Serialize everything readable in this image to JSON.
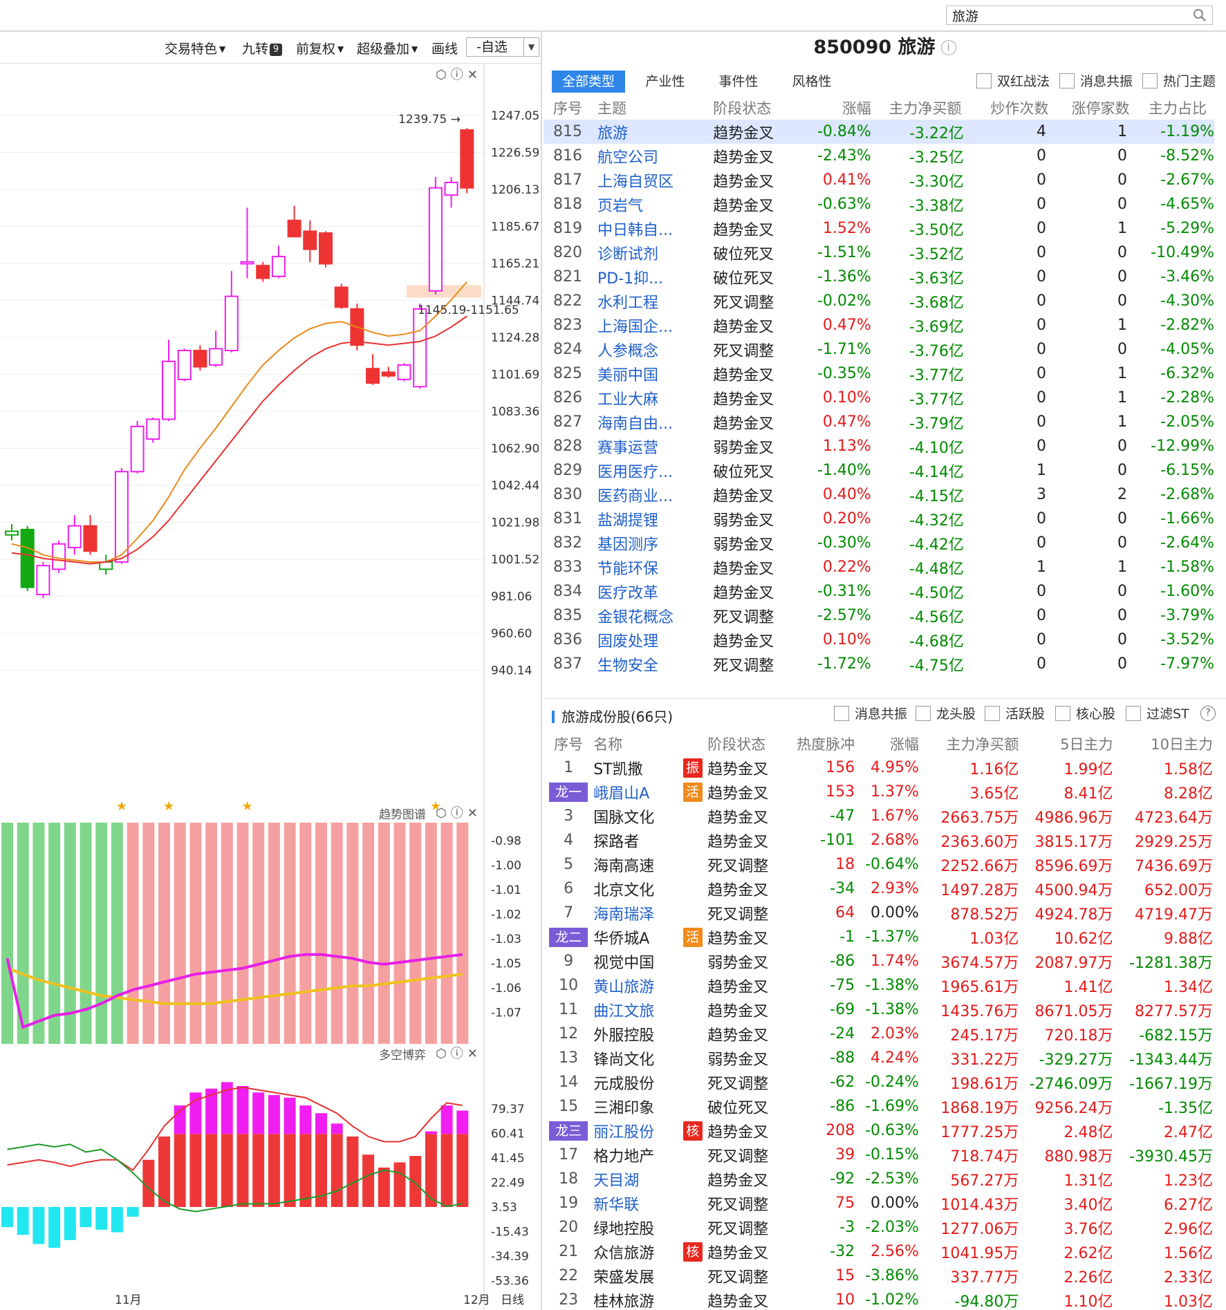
{
  "search": {
    "value": "旅游"
  },
  "toolbar": {
    "trade_feature": "交易特色",
    "nine_turn": "九转",
    "nine_badge": "9",
    "forward_adjust": "前复权",
    "super_overlay": "超级叠加",
    "draw_line": "画线",
    "watchlist": "-自选"
  },
  "kline": {
    "y_ticks": [
      "1247.05",
      "1226.59",
      "1206.13",
      "1185.67",
      "1165.21",
      "1144.74",
      "1124.28",
      "1101.69",
      "1083.36",
      "1062.90",
      "1042.44",
      "1021.98",
      "1001.52",
      "981.06",
      "960.60",
      "940.14"
    ],
    "high_label": "1239.75",
    "zone_label": "1145.19-1151.65",
    "x_labels": [
      "11月",
      "12月"
    ],
    "period": "日线",
    "candles": [
      {
        "o": 1015,
        "h": 1021,
        "l": 1012,
        "c": 1017
      },
      {
        "o": 1018,
        "h": 1020,
        "l": 984,
        "c": 986
      },
      {
        "o": 982,
        "h": 1000,
        "l": 980,
        "c": 998
      },
      {
        "o": 996,
        "h": 1012,
        "l": 994,
        "c": 1010
      },
      {
        "o": 1008,
        "h": 1026,
        "l": 1004,
        "c": 1020
      },
      {
        "o": 1020,
        "h": 1026,
        "l": 1004,
        "c": 1006
      },
      {
        "o": 996,
        "h": 1004,
        "l": 993,
        "c": 1000
      },
      {
        "o": 1000,
        "h": 1052,
        "l": 999,
        "c": 1050
      },
      {
        "o": 1050,
        "h": 1078,
        "l": 1049,
        "c": 1075
      },
      {
        "o": 1068,
        "h": 1080,
        "l": 1066,
        "c": 1079
      },
      {
        "o": 1079,
        "h": 1123,
        "l": 1078,
        "c": 1111
      },
      {
        "o": 1101,
        "h": 1118,
        "l": 1100,
        "c": 1117
      },
      {
        "o": 1117,
        "h": 1120,
        "l": 1106,
        "c": 1108
      },
      {
        "o": 1109,
        "h": 1128,
        "l": 1108,
        "c": 1118
      },
      {
        "o": 1117,
        "h": 1161,
        "l": 1116,
        "c": 1147
      },
      {
        "o": 1165,
        "h": 1196,
        "l": 1157,
        "c": 1166
      },
      {
        "o": 1164,
        "h": 1166,
        "l": 1155,
        "c": 1157
      },
      {
        "o": 1158,
        "h": 1175,
        "l": 1157,
        "c": 1169
      },
      {
        "o": 1189,
        "h": 1197,
        "l": 1180,
        "c": 1180
      },
      {
        "o": 1183,
        "h": 1189,
        "l": 1166,
        "c": 1173
      },
      {
        "o": 1182,
        "h": 1183,
        "l": 1163,
        "c": 1165
      },
      {
        "o": 1152,
        "h": 1154,
        "l": 1140,
        "c": 1141
      },
      {
        "o": 1140,
        "h": 1143,
        "l": 1117,
        "c": 1120
      },
      {
        "o": 1107,
        "h": 1115,
        "l": 1098,
        "c": 1099
      },
      {
        "o": 1105,
        "h": 1108,
        "l": 1102,
        "c": 1103
      },
      {
        "o": 1101,
        "h": 1110,
        "l": 1100,
        "c": 1109
      },
      {
        "o": 1097,
        "h": 1143,
        "l": 1096,
        "c": 1140
      },
      {
        "o": 1150,
        "h": 1213,
        "l": 1148,
        "c": 1207
      },
      {
        "o": 1203,
        "h": 1213,
        "l": 1196,
        "c": 1210
      },
      {
        "o": 1239,
        "h": 1240,
        "l": 1204,
        "c": 1207
      }
    ],
    "ma_short": [
      1010,
      1008,
      1004,
      1002,
      1001,
      1000,
      1000,
      1004,
      1013,
      1023,
      1036,
      1051,
      1063,
      1074,
      1086,
      1098,
      1109,
      1117,
      1124,
      1129,
      1132,
      1133,
      1130,
      1127,
      1125,
      1126,
      1128,
      1136,
      1145,
      1155
    ],
    "ma_long": [
      1005,
      1004,
      1002,
      1001,
      1000,
      999,
      1000,
      1002,
      1007,
      1014,
      1023,
      1034,
      1045,
      1056,
      1067,
      1078,
      1089,
      1098,
      1106,
      1113,
      1118,
      1121,
      1122,
      1121,
      1120,
      1121,
      1122,
      1125,
      1130,
      1136
    ],
    "stars": [
      7,
      10,
      15,
      27
    ]
  },
  "trend_panel": {
    "title": "趋势图谱",
    "y_ticks": [
      "-0.98",
      "-1.00",
      "-1.01",
      "-1.02",
      "-1.03",
      "-1.05",
      "-1.06",
      "-1.07"
    ],
    "bar_colors": [
      "green",
      "green",
      "green",
      "green",
      "green",
      "green",
      "green",
      "green",
      "red",
      "red",
      "red",
      "red",
      "red",
      "red",
      "red",
      "red",
      "red",
      "red",
      "red",
      "red",
      "red",
      "red",
      "red",
      "red",
      "red",
      "red",
      "red",
      "red",
      "red",
      "red"
    ],
    "magenta_line": [
      -1.04,
      -1.075,
      -1.072,
      -1.069,
      -1.068,
      -1.066,
      -1.063,
      -1.059,
      -1.056,
      -1.054,
      -1.052,
      -1.05,
      -1.048,
      -1.047,
      -1.046,
      -1.045,
      -1.043,
      -1.041,
      -1.039,
      -1.038,
      -1.038,
      -1.039,
      -1.04,
      -1.042,
      -1.043,
      -1.042,
      -1.041,
      -1.04,
      -1.039,
      -1.038
    ],
    "yellow_line": [
      -1.045,
      -1.048,
      -1.051,
      -1.053,
      -1.055,
      -1.057,
      -1.059,
      -1.06,
      -1.061,
      -1.062,
      -1.063,
      -1.063,
      -1.063,
      -1.063,
      -1.062,
      -1.061,
      -1.06,
      -1.059,
      -1.058,
      -1.057,
      -1.056,
      -1.055,
      -1.054,
      -1.054,
      -1.053,
      -1.052,
      -1.051,
      -1.05,
      -1.049,
      -1.048
    ]
  },
  "ls_panel": {
    "title": "多空博弈",
    "y_ticks": [
      "79.37",
      "60.41",
      "41.45",
      "22.49",
      "3.53",
      "-15.43",
      "-34.39",
      "-53.36"
    ],
    "bars": [
      -12,
      -18,
      -25,
      -28,
      -22,
      -12,
      -14,
      -16,
      -4,
      40,
      58,
      82,
      92,
      95,
      100,
      97,
      92,
      90,
      88,
      82,
      76,
      68,
      58,
      44,
      34,
      38,
      43,
      62,
      82,
      78
    ],
    "base": [
      -6,
      -10,
      -14,
      -16,
      -14,
      -8,
      -10,
      -12,
      4,
      40,
      60,
      60,
      60,
      60,
      60,
      60,
      60,
      60,
      60,
      60,
      60,
      60,
      60,
      44,
      34,
      38,
      43,
      60,
      60,
      60
    ],
    "red_line": [
      36,
      38,
      40,
      38,
      35,
      38,
      40,
      40,
      32,
      48,
      66,
      78,
      86,
      90,
      94,
      96,
      94,
      92,
      90,
      88,
      82,
      76,
      66,
      58,
      54,
      54,
      58,
      72,
      84,
      82
    ],
    "green_line": [
      48,
      50,
      52,
      50,
      52,
      46,
      48,
      40,
      30,
      18,
      8,
      2,
      0,
      2,
      4,
      6,
      6,
      6,
      8,
      10,
      12,
      16,
      22,
      28,
      32,
      30,
      22,
      10,
      4,
      6
    ]
  },
  "theme": {
    "title": "850090 旅游",
    "tabs": [
      "全部类型",
      "产业性",
      "事件性",
      "风格性"
    ],
    "checks": [
      "双红战法",
      "消息共振",
      "热门主题"
    ],
    "headers": [
      "序号",
      "主题",
      "阶段状态",
      "涨幅",
      "主力净买额",
      "炒作次数",
      "涨停家数",
      "主力占比"
    ],
    "rows": [
      [
        "815",
        "旅游",
        "趋势金叉",
        "-0.84%",
        "-3.22亿",
        "4",
        "1",
        "-1.19%"
      ],
      [
        "816",
        "航空公司",
        "趋势金叉",
        "-2.43%",
        "-3.25亿",
        "0",
        "0",
        "-8.52%"
      ],
      [
        "817",
        "上海自贸区",
        "趋势金叉",
        "0.41%",
        "-3.30亿",
        "0",
        "0",
        "-2.67%"
      ],
      [
        "818",
        "页岩气",
        "趋势金叉",
        "-0.63%",
        "-3.38亿",
        "0",
        "0",
        "-4.65%"
      ],
      [
        "819",
        "中日韩自...",
        "趋势金叉",
        "1.52%",
        "-3.50亿",
        "0",
        "1",
        "-5.29%"
      ],
      [
        "820",
        "诊断试剂",
        "破位死叉",
        "-1.51%",
        "-3.52亿",
        "0",
        "0",
        "-10.49%"
      ],
      [
        "821",
        "PD-1抑...",
        "破位死叉",
        "-1.36%",
        "-3.63亿",
        "0",
        "0",
        "-3.46%"
      ],
      [
        "822",
        "水利工程",
        "死叉调整",
        "-0.02%",
        "-3.68亿",
        "0",
        "0",
        "-4.30%"
      ],
      [
        "823",
        "上海国企...",
        "趋势金叉",
        "0.47%",
        "-3.69亿",
        "0",
        "1",
        "-2.82%"
      ],
      [
        "824",
        "人参概念",
        "死叉调整",
        "-1.71%",
        "-3.76亿",
        "0",
        "0",
        "-4.05%"
      ],
      [
        "825",
        "美丽中国",
        "趋势金叉",
        "-0.35%",
        "-3.77亿",
        "0",
        "1",
        "-6.32%"
      ],
      [
        "826",
        "工业大麻",
        "趋势金叉",
        "0.10%",
        "-3.77亿",
        "0",
        "1",
        "-2.28%"
      ],
      [
        "827",
        "海南自由...",
        "趋势金叉",
        "0.47%",
        "-3.79亿",
        "0",
        "1",
        "-2.05%"
      ],
      [
        "828",
        "赛事运营",
        "弱势金叉",
        "1.13%",
        "-4.10亿",
        "0",
        "0",
        "-12.99%"
      ],
      [
        "829",
        "医用医疗...",
        "破位死叉",
        "-1.40%",
        "-4.14亿",
        "1",
        "0",
        "-6.15%"
      ],
      [
        "830",
        "医药商业...",
        "趋势金叉",
        "0.40%",
        "-4.15亿",
        "3",
        "2",
        "-2.68%"
      ],
      [
        "831",
        "盐湖提锂",
        "弱势金叉",
        "0.20%",
        "-4.32亿",
        "0",
        "0",
        "-1.66%"
      ],
      [
        "832",
        "基因测序",
        "弱势金叉",
        "-0.30%",
        "-4.42亿",
        "0",
        "0",
        "-2.64%"
      ],
      [
        "833",
        "节能环保",
        "趋势金叉",
        "0.22%",
        "-4.48亿",
        "1",
        "1",
        "-1.58%"
      ],
      [
        "834",
        "医疗改革",
        "趋势金叉",
        "-0.31%",
        "-4.50亿",
        "0",
        "0",
        "-1.60%"
      ],
      [
        "835",
        "金银花概念",
        "死叉调整",
        "-2.57%",
        "-4.56亿",
        "0",
        "0",
        "-3.79%"
      ],
      [
        "836",
        "固废处理",
        "趋势金叉",
        "0.10%",
        "-4.68亿",
        "0",
        "0",
        "-3.52%"
      ],
      [
        "837",
        "生物安全",
        "死叉调整",
        "-1.72%",
        "-4.75亿",
        "0",
        "0",
        "-7.97%"
      ]
    ]
  },
  "stocks": {
    "title": "旅游成份股(66只)",
    "checks": [
      "消息共振",
      "龙头股",
      "活跃股",
      "核心股",
      "过滤ST"
    ],
    "headers": [
      "序号",
      "名称",
      "",
      "阶段状态",
      "热度脉冲",
      "涨幅",
      "主力净买额",
      "5日主力",
      "10日主力"
    ],
    "rows": [
      [
        "1",
        "ST凯撒",
        "振",
        "趋势金叉",
        "156",
        "4.95%",
        "1.16亿",
        "1.99亿",
        "1.58亿"
      ],
      [
        "龙一",
        "峨眉山A",
        "活",
        "趋势金叉",
        "153",
        "1.37%",
        "3.65亿",
        "8.41亿",
        "8.28亿"
      ],
      [
        "3",
        "国脉文化",
        "",
        "趋势金叉",
        "-47",
        "1.67%",
        "2663.75万",
        "4986.96万",
        "4723.64万"
      ],
      [
        "4",
        "探路者",
        "",
        "趋势金叉",
        "-101",
        "2.68%",
        "2363.60万",
        "3815.17万",
        "2929.25万"
      ],
      [
        "5",
        "海南高速",
        "",
        "死叉调整",
        "18",
        "-0.64%",
        "2252.66万",
        "8596.69万",
        "7436.69万"
      ],
      [
        "6",
        "北京文化",
        "",
        "趋势金叉",
        "-34",
        "2.93%",
        "1497.28万",
        "4500.94万",
        "652.00万"
      ],
      [
        "7",
        "海南瑞泽",
        "",
        "死叉调整",
        "64",
        "0.00%",
        "878.52万",
        "4924.78万",
        "4719.47万"
      ],
      [
        "龙二",
        "华侨城A",
        "活",
        "趋势金叉",
        "-1",
        "-1.37%",
        "1.03亿",
        "10.62亿",
        "9.88亿"
      ],
      [
        "9",
        "视觉中国",
        "",
        "弱势金叉",
        "-86",
        "1.74%",
        "3674.57万",
        "2087.97万",
        "-1281.38万"
      ],
      [
        "10",
        "黄山旅游",
        "",
        "趋势金叉",
        "-75",
        "-1.38%",
        "1965.61万",
        "1.41亿",
        "1.34亿"
      ],
      [
        "11",
        "曲江文旅",
        "",
        "趋势金叉",
        "-69",
        "-1.38%",
        "1435.76万",
        "8671.05万",
        "8277.57万"
      ],
      [
        "12",
        "外服控股",
        "",
        "趋势金叉",
        "-24",
        "2.03%",
        "245.17万",
        "720.18万",
        "-682.15万"
      ],
      [
        "13",
        "锋尚文化",
        "",
        "弱势金叉",
        "-88",
        "4.24%",
        "331.22万",
        "-329.27万",
        "-1343.44万"
      ],
      [
        "14",
        "元成股份",
        "",
        "死叉调整",
        "-62",
        "-0.24%",
        "198.61万",
        "-2746.09万",
        "-1667.19万"
      ],
      [
        "15",
        "三湘印象",
        "",
        "破位死叉",
        "-86",
        "-1.69%",
        "1868.19万",
        "9256.24万",
        "-1.35亿"
      ],
      [
        "龙三",
        "丽江股份",
        "核",
        "趋势金叉",
        "208",
        "-0.63%",
        "1777.25万",
        "2.48亿",
        "2.47亿"
      ],
      [
        "17",
        "格力地产",
        "",
        "死叉调整",
        "39",
        "-0.15%",
        "718.74万",
        "880.98万",
        "-3930.45万"
      ],
      [
        "18",
        "天目湖",
        "",
        "趋势金叉",
        "-92",
        "-2.53%",
        "567.27万",
        "1.31亿",
        "1.23亿"
      ],
      [
        "19",
        "新华联",
        "",
        "死叉调整",
        "75",
        "0.00%",
        "1014.43万",
        "3.40亿",
        "6.27亿"
      ],
      [
        "20",
        "绿地控股",
        "",
        "死叉调整",
        "-3",
        "-2.03%",
        "1277.06万",
        "3.76亿",
        "2.96亿"
      ],
      [
        "21",
        "众信旅游",
        "核",
        "趋势金叉",
        "-32",
        "2.56%",
        "1041.95万",
        "2.62亿",
        "1.56亿"
      ],
      [
        "22",
        "荣盛发展",
        "",
        "死叉调整",
        "15",
        "-3.86%",
        "337.77万",
        "2.26亿",
        "2.33亿"
      ],
      [
        "23",
        "桂林旅游",
        "",
        "趋势金叉",
        "10",
        "-1.02%",
        "-94.80万",
        "1.10亿",
        "1.03亿"
      ]
    ],
    "blue_names": [
      "峨眉山A",
      "海南瑞泽",
      "黄山旅游",
      "曲江文旅",
      "丽江股份",
      "天目湖",
      "新华联"
    ]
  },
  "colors": {
    "up": "#e41a1a",
    "down": "#008a00",
    "accent": "#2f86e8",
    "magenta": "#f01ef0",
    "select_bg": "#dde7ff"
  }
}
